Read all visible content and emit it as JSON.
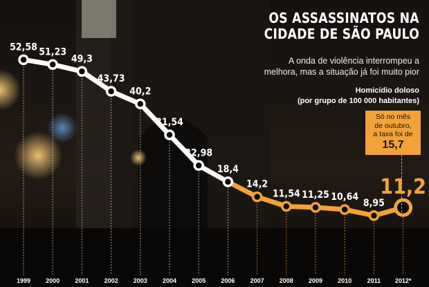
{
  "title_line1": "OS ASSASSINATOS NA",
  "title_line2": "CIDADE DE SÃO PAULO",
  "subtitle_line1": "A onda de violência interrompeu a",
  "subtitle_line2": "melhora, mas a situação já foi muito pior",
  "unit_line1": "Homicídio doloso",
  "unit_line2": "(por grupo de 100 000 habitantes)",
  "callout": {
    "line1": "Só no mês",
    "line2": "de outubro,",
    "line3": "a taxa foi de",
    "value": "15,7"
  },
  "colors": {
    "line_white": "#ffffff",
    "line_orange": "#f3a23a",
    "label_orange": "#f3a23a",
    "background": "#0b0908"
  },
  "chart_data": {
    "type": "line",
    "x": [
      "1999",
      "2000",
      "2001",
      "2002",
      "2003",
      "2004",
      "2005",
      "2006",
      "2007",
      "2008",
      "2009",
      "2010",
      "2011",
      "2012*"
    ],
    "values": [
      52.58,
      51.23,
      49.3,
      43.73,
      40.2,
      31.54,
      22.98,
      18.4,
      14.2,
      11.54,
      11.25,
      10.64,
      8.95,
      11.2
    ],
    "value_labels": [
      "52,58",
      "51,23",
      "49,3",
      "43,73",
      "40,2",
      "31,54",
      "22,98",
      "18,4",
      "14,2",
      "11,54",
      "11,25",
      "10,64",
      "8,95",
      "11,2"
    ],
    "ylim": [
      0,
      60
    ],
    "grid": false,
    "color_change_after_index": 7
  }
}
